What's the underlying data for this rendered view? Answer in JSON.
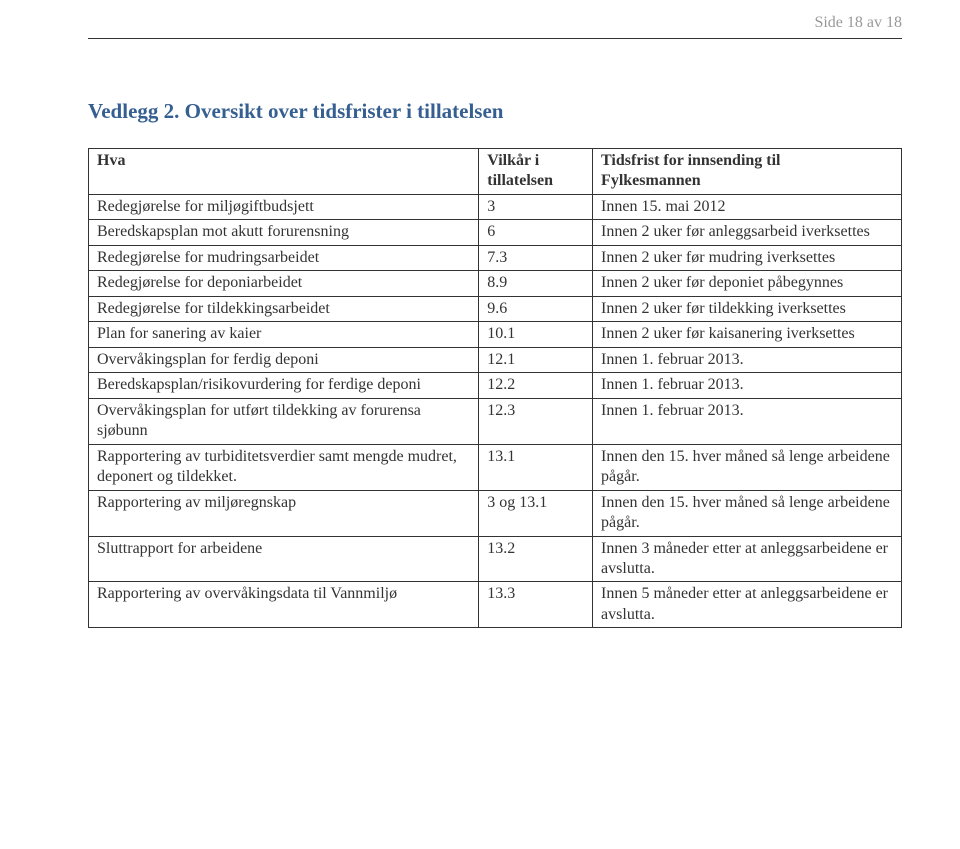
{
  "page_number": "Side 18 av 18",
  "title": "Vedlegg 2. Oversikt over tidsfrister i tillatelsen",
  "columns": {
    "c1": "Hva",
    "c2a": "Vilkår i",
    "c2b": "tillatelsen",
    "c3a": "Tidsfrist for innsending til",
    "c3b": "Fylkesmannen"
  },
  "rows": [
    {
      "hva": "Redegjørelse for miljøgiftbudsjett",
      "vilkar": "3",
      "frist": "Innen 15. mai 2012"
    },
    {
      "hva": "Beredskapsplan mot akutt forurensning",
      "vilkar": "6",
      "frist": "Innen 2 uker før anleggsarbeid iverksettes"
    },
    {
      "hva": "Redegjørelse for mudringsarbeidet",
      "vilkar": "7.3",
      "frist": "Innen 2 uker før mudring iverksettes"
    },
    {
      "hva": "Redegjørelse for deponiarbeidet",
      "vilkar": "8.9",
      "frist": "Innen 2 uker før deponiet påbegynnes"
    },
    {
      "hva": "Redegjørelse for tildekkingsarbeidet",
      "vilkar": "9.6",
      "frist": "Innen 2 uker før tildekking iverksettes"
    },
    {
      "hva": "Plan for sanering av kaier",
      "vilkar": "10.1",
      "frist": "Innen 2 uker før kaisanering iverksettes"
    },
    {
      "hva": "Overvåkingsplan for ferdig deponi",
      "vilkar": "12.1",
      "frist": "Innen 1. februar 2013."
    },
    {
      "hva": "Beredskapsplan/risikovurdering for ferdige deponi",
      "vilkar": "12.2",
      "frist": "Innen 1. februar 2013."
    },
    {
      "hva": "Overvåkingsplan for utført tildekking av forurensa sjøbunn",
      "vilkar": "12.3",
      "frist": "Innen 1. februar 2013."
    },
    {
      "hva": "Rapportering av turbiditetsverdier samt mengde mudret, deponert og tildekket.",
      "vilkar": "13.1",
      "frist": "Innen den 15. hver måned så lenge arbeidene pågår."
    },
    {
      "hva": "Rapportering av miljøregnskap",
      "vilkar": "3 og 13.1",
      "frist": "Innen den 15. hver måned så lenge arbeidene pågår."
    },
    {
      "hva": "Sluttrapport for arbeidene",
      "vilkar": "13.2",
      "frist": "Innen 3 måneder etter at anleggsarbeidene er avslutta."
    },
    {
      "hva": "Rapportering av overvåkingsdata til Vannmiljø",
      "vilkar": "13.3",
      "frist": "Innen 5 måneder etter at anleggsarbeidene er avslutta."
    }
  ]
}
